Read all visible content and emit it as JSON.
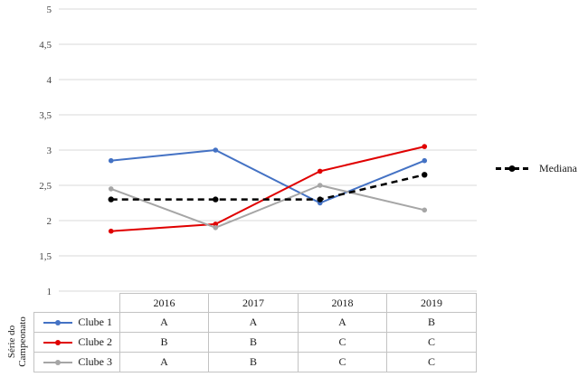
{
  "colors": {
    "background": "#ffffff",
    "gridline": "#d9d9d9",
    "table_border": "#c3c3c3",
    "tick_text": "#404040",
    "clube1_blue": "#4472c4",
    "clube2_red": "#e00000",
    "clube3_gray": "#a6a6a6",
    "mediana_black": "#000000"
  },
  "chart_data": {
    "type": "line",
    "title": "",
    "xlabel": "",
    "ylabel": "Série do Campeonato",
    "categories": [
      "2016",
      "2017",
      "2018",
      "2019"
    ],
    "series": [
      {
        "name": "Clube 1",
        "color": "#4472c4",
        "style": "solid",
        "marker": "circle",
        "values": [
          2.85,
          3.0,
          2.25,
          2.85
        ]
      },
      {
        "name": "Clube 2",
        "color": "#e00000",
        "style": "solid",
        "marker": "circle",
        "values": [
          1.85,
          1.95,
          2.7,
          3.05
        ]
      },
      {
        "name": "Clube 3",
        "color": "#a6a6a6",
        "style": "solid",
        "marker": "circle",
        "values": [
          2.45,
          1.9,
          2.5,
          2.15
        ]
      },
      {
        "name": "Mediana",
        "color": "#000000",
        "style": "dashed",
        "marker": "circle",
        "values": [
          2.3,
          2.3,
          2.3,
          2.65
        ]
      }
    ],
    "ylim": [
      1,
      5
    ],
    "ytick_step": 0.5,
    "ytick_labels": [
      "5",
      "4,5",
      "4",
      "3,5",
      "3",
      "2,5",
      "2",
      "1,5",
      "1"
    ],
    "grid": true,
    "legend_position": "right"
  },
  "legend": {
    "label": "Mediana",
    "color": "#000000"
  },
  "axis_title": {
    "line1": "Série do",
    "line2": "Campeonato"
  },
  "table": {
    "col_headers": [
      "2016",
      "2017",
      "2018",
      "2019"
    ],
    "rows": [
      {
        "label": "Clube 1",
        "color": "#4472c4",
        "values": [
          "A",
          "A",
          "A",
          "B"
        ]
      },
      {
        "label": "Clube 2",
        "color": "#e00000",
        "values": [
          "B",
          "B",
          "C",
          "C"
        ]
      },
      {
        "label": "Clube 3",
        "color": "#a6a6a6",
        "values": [
          "A",
          "B",
          "C",
          "C"
        ]
      }
    ]
  }
}
